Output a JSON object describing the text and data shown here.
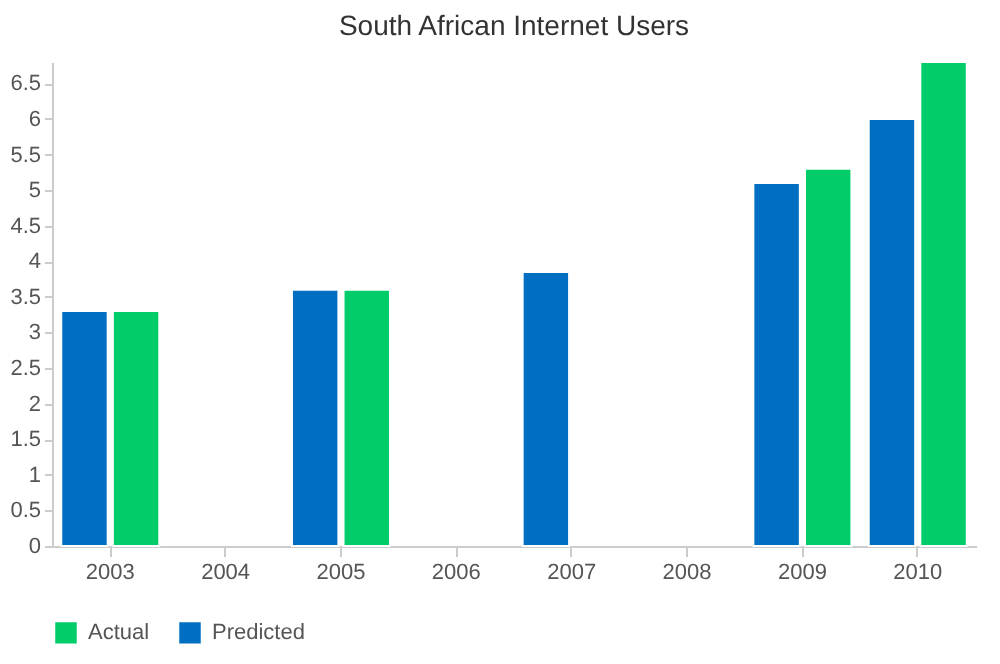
{
  "chart_data": {
    "type": "bar",
    "title": "South African Internet Users",
    "categories": [
      "2003",
      "2004",
      "2005",
      "2006",
      "2007",
      "2008",
      "2009",
      "2010"
    ],
    "series": [
      {
        "name": "Actual",
        "color": "#00cc6a",
        "values": [
          3.3,
          null,
          3.6,
          null,
          null,
          null,
          5.3,
          6.8
        ]
      },
      {
        "name": "Predicted",
        "color": "#006fc2",
        "values": [
          3.3,
          null,
          3.6,
          null,
          3.85,
          null,
          5.1,
          6.0
        ]
      }
    ],
    "ylim": [
      0,
      6.8
    ],
    "yticks": [
      0,
      0.5,
      1,
      1.5,
      2,
      2.5,
      3,
      3.5,
      4,
      4.5,
      5,
      5.5,
      6,
      6.5
    ],
    "grid": false,
    "legend": "bottom"
  }
}
